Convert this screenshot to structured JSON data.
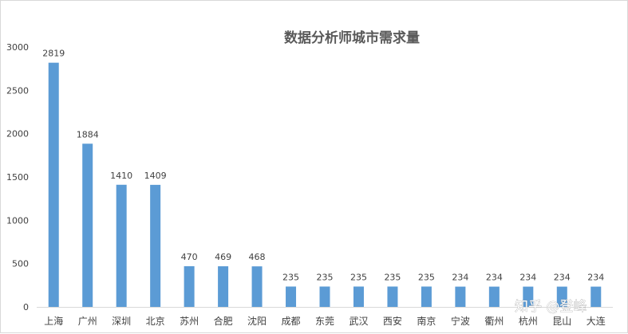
{
  "chart_data": {
    "type": "bar",
    "title": "数据分析师城市需求量",
    "categories": [
      "上海",
      "广州",
      "深圳",
      "北京",
      "苏州",
      "合肥",
      "沈阳",
      "成都",
      "东莞",
      "武汉",
      "西安",
      "南京",
      "宁波",
      "衢州",
      "杭州",
      "昆山",
      "大连"
    ],
    "values": [
      2819,
      1884,
      1410,
      1409,
      470,
      469,
      468,
      235,
      235,
      235,
      235,
      235,
      234,
      234,
      234,
      234,
      234
    ],
    "ylim": [
      0,
      3000
    ],
    "yticks": [
      0,
      500,
      1000,
      1500,
      2000,
      2500,
      3000
    ],
    "bar_color": "#5b9bd5",
    "grid": false,
    "legend": "none",
    "data_labels": true
  },
  "watermark": "知乎 @登峰"
}
